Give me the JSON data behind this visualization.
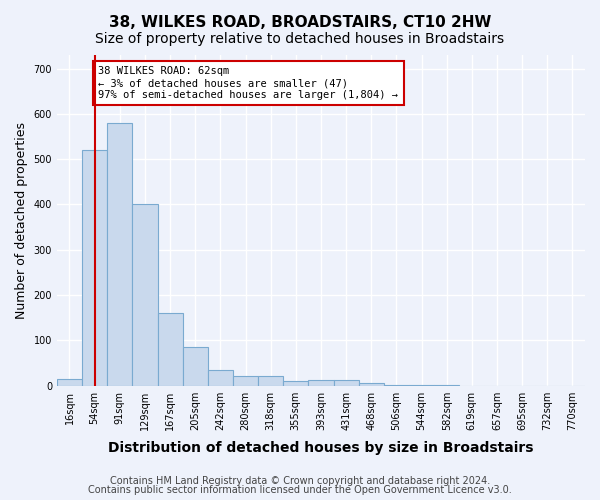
{
  "title": "38, WILKES ROAD, BROADSTAIRS, CT10 2HW",
  "subtitle": "Size of property relative to detached houses in Broadstairs",
  "xlabel": "Distribution of detached houses by size in Broadstairs",
  "ylabel": "Number of detached properties",
  "bin_labels": [
    "16sqm",
    "54sqm",
    "91sqm",
    "129sqm",
    "167sqm",
    "205sqm",
    "242sqm",
    "280sqm",
    "318sqm",
    "355sqm",
    "393sqm",
    "431sqm",
    "468sqm",
    "506sqm",
    "544sqm",
    "582sqm",
    "619sqm",
    "657sqm",
    "695sqm",
    "732sqm",
    "770sqm"
  ],
  "bar_values": [
    15,
    520,
    580,
    400,
    160,
    85,
    35,
    22,
    22,
    10,
    12,
    12,
    5,
    1,
    1,
    1,
    0,
    0,
    0,
    0,
    0
  ],
  "bar_color": "#c9d9ed",
  "bar_edge_color": "#7aaad0",
  "vline_x": 1.0,
  "vline_color": "#cc0000",
  "annotation_text": "38 WILKES ROAD: 62sqm\n← 3% of detached houses are smaller (47)\n97% of semi-detached houses are larger (1,804) →",
  "annotation_box_color": "#ffffff",
  "annotation_box_edge": "#cc0000",
  "ylim": [
    0,
    730
  ],
  "yticks": [
    0,
    100,
    200,
    300,
    400,
    500,
    600,
    700
  ],
  "footer_line1": "Contains HM Land Registry data © Crown copyright and database right 2024.",
  "footer_line2": "Contains public sector information licensed under the Open Government Licence v3.0.",
  "bg_color": "#eef2fb",
  "plot_bg_color": "#eef2fb",
  "grid_color": "#ffffff",
  "title_fontsize": 11,
  "subtitle_fontsize": 10,
  "axis_label_fontsize": 9,
  "tick_fontsize": 7,
  "footer_fontsize": 7
}
